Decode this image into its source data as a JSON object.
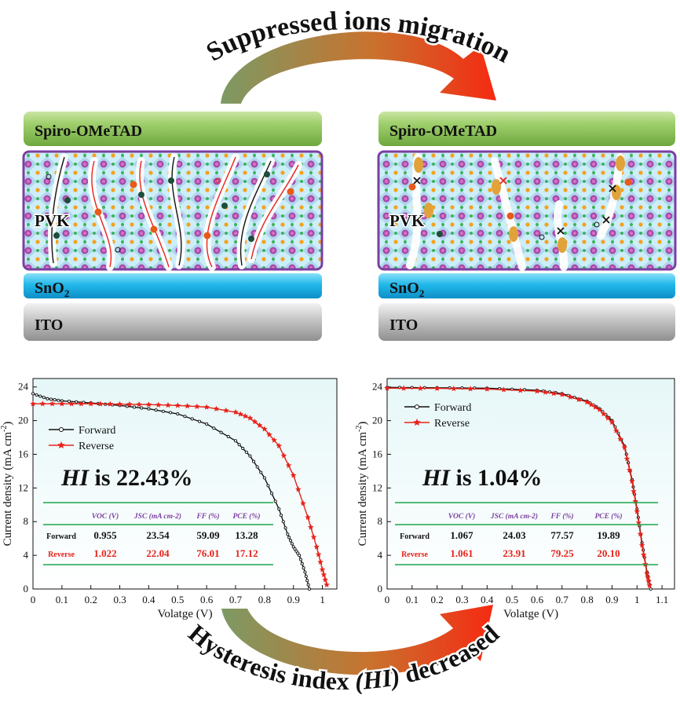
{
  "top_arrow_label": "Suppressed ions migration",
  "bottom_arrow_label_parts": [
    "Hysteresis index ",
    "(HI)",
    " decreased"
  ],
  "layers": {
    "htl": "Spiro-OMeTAD",
    "pvk": "PVK",
    "etl": "SnO",
    "etl_sub": "2",
    "substrate": "ITO"
  },
  "colors": {
    "htl": "#8fc25a",
    "pvk_border": "#7b3fa0",
    "pvk_fill": "#cdeef8",
    "etl": "#1fb6e8",
    "substrate": "#b9b9b9",
    "forward": "#111111",
    "reverse": "#e8221a",
    "table_rule": "#1aa64a",
    "header_text": "#7b3fa0",
    "arrow_start": "#8aa070",
    "arrow_end": "#f02a14"
  },
  "chart_data": [
    {
      "type": "line",
      "xlabel": "Volatge (V)",
      "ylabel": "Current density (mA cm",
      "ylabel_sup": "-2",
      "ylabel_end": ")",
      "xlim": [
        0,
        1.05
      ],
      "ylim": [
        0,
        25
      ],
      "xticks": [
        "0",
        "0.1",
        "0.2",
        "0.3",
        "0.4",
        "0.5",
        "0.6",
        "0.7",
        "0.8",
        "0.9",
        "1"
      ],
      "yticks": [
        "0",
        "4",
        "8",
        "12",
        "16",
        "20",
        "24"
      ],
      "annotation_prefix": "HI",
      "annotation": " is 22.43%",
      "legend": [
        "Forward",
        "Reverse"
      ],
      "series": [
        {
          "name": "Forward",
          "points": [
            [
              0,
              23.2
            ],
            [
              0.05,
              22.6
            ],
            [
              0.1,
              22.35
            ],
            [
              0.2,
              22.1
            ],
            [
              0.3,
              21.8
            ],
            [
              0.4,
              21.4
            ],
            [
              0.5,
              20.8
            ],
            [
              0.6,
              19.6
            ],
            [
              0.7,
              17.6
            ],
            [
              0.75,
              15.8
            ],
            [
              0.8,
              13.2
            ],
            [
              0.85,
              9.5
            ],
            [
              0.88,
              6.5
            ],
            [
              0.9,
              5.0
            ],
            [
              0.92,
              4.0
            ],
            [
              0.94,
              2.0
            ],
            [
              0.955,
              0
            ]
          ]
        },
        {
          "name": "Reverse",
          "points": [
            [
              0,
              22.0
            ],
            [
              0.1,
              22.0
            ],
            [
              0.2,
              22.0
            ],
            [
              0.3,
              21.95
            ],
            [
              0.4,
              21.9
            ],
            [
              0.5,
              21.8
            ],
            [
              0.6,
              21.6
            ],
            [
              0.7,
              21.0
            ],
            [
              0.75,
              20.3
            ],
            [
              0.8,
              19.0
            ],
            [
              0.85,
              17.0
            ],
            [
              0.9,
              13.5
            ],
            [
              0.95,
              8.5
            ],
            [
              0.98,
              5.0
            ],
            [
              1.0,
              2.3
            ],
            [
              1.015,
              0.5
            ]
          ]
        }
      ],
      "table": {
        "headers": [
          "VOC (V)",
          "JSC (mA cm-2)",
          "FF (%)",
          "PCE (%)"
        ],
        "rows": [
          {
            "label": "Forward",
            "values": [
              "0.955",
              "23.54",
              "59.09",
              "13.28"
            ]
          },
          {
            "label": "Reverse",
            "values": [
              "1.022",
              "22.04",
              "76.01",
              "17.12"
            ]
          }
        ]
      }
    },
    {
      "type": "line",
      "xlabel": "Volatge (V)",
      "ylabel": "Current density (mA cm",
      "ylabel_sup": "-2",
      "ylabel_end": ")",
      "xlim": [
        0,
        1.15
      ],
      "ylim": [
        0,
        25
      ],
      "xticks": [
        "0",
        "0.1",
        "0.2",
        "0.3",
        "0.4",
        "0.5",
        "0.6",
        "0.7",
        "0.8",
        "0.9",
        "1",
        "1.1"
      ],
      "yticks": [
        "0",
        "4",
        "8",
        "12",
        "16",
        "20",
        "24"
      ],
      "annotation_prefix": "HI",
      "annotation": " is 1.04%",
      "legend": [
        "Forward",
        "Reverse"
      ],
      "series": [
        {
          "name": "Forward",
          "points": [
            [
              0,
              23.95
            ],
            [
              0.2,
              23.9
            ],
            [
              0.4,
              23.85
            ],
            [
              0.6,
              23.6
            ],
            [
              0.7,
              23.2
            ],
            [
              0.8,
              22.3
            ],
            [
              0.85,
              21.4
            ],
            [
              0.9,
              20.0
            ],
            [
              0.95,
              17.0
            ],
            [
              0.98,
              13.0
            ],
            [
              1.0,
              9.5
            ],
            [
              1.02,
              5.5
            ],
            [
              1.04,
              2.0
            ],
            [
              1.055,
              0
            ]
          ]
        },
        {
          "name": "Reverse",
          "points": [
            [
              0,
              23.85
            ],
            [
              0.2,
              23.82
            ],
            [
              0.4,
              23.75
            ],
            [
              0.6,
              23.5
            ],
            [
              0.7,
              23.1
            ],
            [
              0.8,
              22.2
            ],
            [
              0.85,
              21.3
            ],
            [
              0.9,
              19.8
            ],
            [
              0.95,
              16.8
            ],
            [
              0.98,
              12.8
            ],
            [
              1.0,
              9.2
            ],
            [
              1.02,
              5.2
            ],
            [
              1.04,
              1.8
            ],
            [
              1.05,
              0.4
            ]
          ]
        }
      ],
      "table": {
        "headers": [
          "VOC (V)",
          "JSC (mA cm-2)",
          "FF (%)",
          "PCE (%)"
        ],
        "rows": [
          {
            "label": "Forward",
            "values": [
              "1.067",
              "24.03",
              "77.57",
              "19.89"
            ]
          },
          {
            "label": "Reverse",
            "values": [
              "1.061",
              "23.91",
              "79.25",
              "20.10"
            ]
          }
        ]
      }
    }
  ]
}
